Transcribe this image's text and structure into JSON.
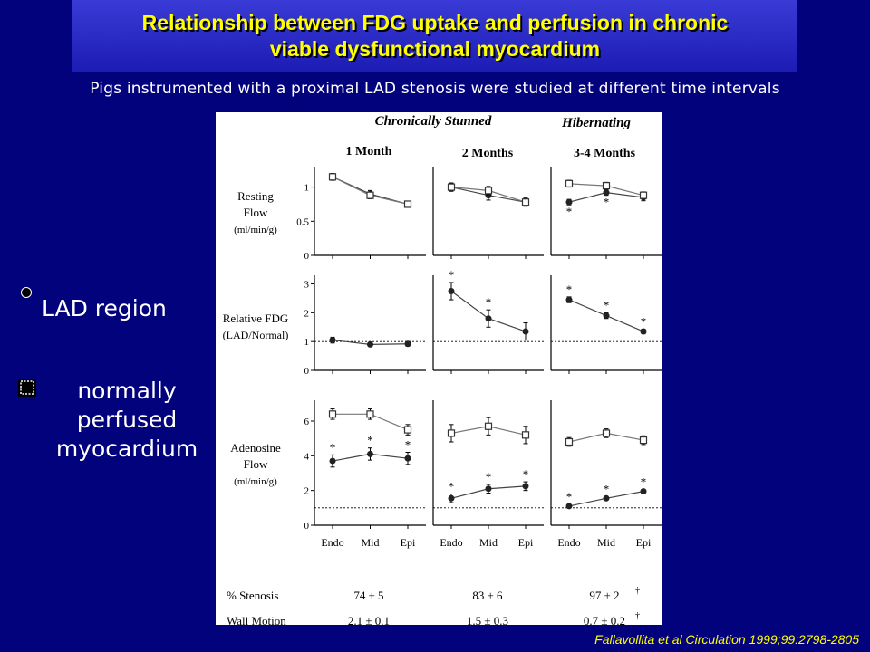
{
  "title": {
    "line1": "Relationship between FDG uptake and perfusion in chronic",
    "line2": "viable dysfunctional myocardium"
  },
  "subtitle": "Pigs instrumented with a proximal LAD stenosis were studied at different time intervals",
  "legend": {
    "lad": "LAD region",
    "normal_lines": [
      "normally",
      "perfused",
      "myocardium"
    ]
  },
  "citation": "Fallavollita et al Circulation 1999;99:2798-2805",
  "figure": {
    "group_headers": [
      "Chronically Stunned",
      "Hibernating"
    ],
    "time_points": [
      "1 Month",
      "2 Months",
      "3-4 Months"
    ],
    "row_labels": [
      [
        "Resting",
        "Flow",
        "(ml/min/g)"
      ],
      [
        "Relative FDG",
        "(LAD/Normal)"
      ],
      [
        "Adenosine",
        "Flow",
        "(ml/min/g)"
      ]
    ],
    "x_tick_labels": [
      "Endo",
      "Mid",
      "Epi"
    ],
    "table": [
      {
        "label": "% Stenosis",
        "values": [
          "74 ± 5",
          "83 ± 6",
          "97 ± 2"
        ],
        "dagger": [
          false,
          false,
          true
        ]
      },
      {
        "label": "Wall Motion",
        "values": [
          "2.1 ± 0.1",
          "1.5 ± 0.3",
          "0.7 ± 0.2"
        ],
        "dagger": [
          false,
          false,
          true
        ]
      }
    ]
  },
  "chart_data": [
    {
      "type": "line",
      "panel": "Resting Flow – 1 Month",
      "categories": [
        "Endo",
        "Mid",
        "Epi"
      ],
      "ylim": [
        0,
        1.3
      ],
      "y_ticks": [
        "0",
        "0.5",
        "1"
      ],
      "reference_line": 1,
      "series": [
        {
          "name": "LAD region",
          "values": [
            1.15,
            0.9,
            0.75
          ],
          "err": [
            0.05,
            0.05,
            0.04
          ],
          "sig": [
            false,
            false,
            false
          ]
        },
        {
          "name": "normally perfused myocardium",
          "values": [
            1.15,
            0.88,
            0.75
          ],
          "err": [
            0.05,
            0.05,
            0.04
          ],
          "sig": [
            false,
            false,
            false
          ]
        }
      ]
    },
    {
      "type": "line",
      "panel": "Resting Flow – 2 Months",
      "categories": [
        "Endo",
        "Mid",
        "Epi"
      ],
      "ylim": [
        0,
        1.3
      ],
      "y_ticks": [],
      "reference_line": 1,
      "series": [
        {
          "name": "LAD region",
          "values": [
            1.0,
            0.88,
            0.78
          ],
          "err": [
            0.06,
            0.07,
            0.06
          ],
          "sig": [
            false,
            false,
            false
          ]
        },
        {
          "name": "normally perfused myocardium",
          "values": [
            1.0,
            0.95,
            0.78
          ],
          "err": [
            0.06,
            0.06,
            0.05
          ],
          "sig": [
            false,
            false,
            false
          ]
        }
      ]
    },
    {
      "type": "line",
      "panel": "Resting Flow – 3-4 Months",
      "categories": [
        "Endo",
        "Mid",
        "Epi"
      ],
      "ylim": [
        0,
        1.3
      ],
      "y_ticks": [],
      "reference_line": 1,
      "series": [
        {
          "name": "LAD region",
          "values": [
            0.78,
            0.92,
            0.85
          ],
          "err": [
            0.04,
            0.04,
            0.05
          ],
          "sig": [
            true,
            true,
            false
          ]
        },
        {
          "name": "normally perfused myocardium",
          "values": [
            1.05,
            1.02,
            0.88
          ],
          "err": [
            0.05,
            0.05,
            0.05
          ],
          "sig": [
            false,
            false,
            false
          ]
        }
      ]
    },
    {
      "type": "line",
      "panel": "Relative FDG – 1 Month",
      "categories": [
        "Endo",
        "Mid",
        "Epi"
      ],
      "ylim": [
        0,
        3.3
      ],
      "y_ticks": [
        "0",
        "1",
        "2",
        "3"
      ],
      "reference_line": 1,
      "series": [
        {
          "name": "LAD region",
          "values": [
            1.05,
            0.9,
            0.92
          ],
          "err": [
            0.1,
            0.07,
            0.08
          ],
          "sig": [
            false,
            false,
            false
          ]
        }
      ]
    },
    {
      "type": "line",
      "panel": "Relative FDG – 2 Months",
      "categories": [
        "Endo",
        "Mid",
        "Epi"
      ],
      "ylim": [
        0,
        3.3
      ],
      "y_ticks": [],
      "reference_line": 1,
      "series": [
        {
          "name": "LAD region",
          "values": [
            2.75,
            1.8,
            1.35
          ],
          "err": [
            0.3,
            0.3,
            0.3
          ],
          "sig": [
            true,
            true,
            false
          ]
        }
      ]
    },
    {
      "type": "line",
      "panel": "Relative FDG – 3-4 Months",
      "categories": [
        "Endo",
        "Mid",
        "Epi"
      ],
      "ylim": [
        0,
        3.3
      ],
      "y_ticks": [],
      "reference_line": 1,
      "series": [
        {
          "name": "LAD region",
          "values": [
            2.45,
            1.9,
            1.35
          ],
          "err": [
            0.1,
            0.1,
            0.08
          ],
          "sig": [
            true,
            true,
            true
          ]
        }
      ]
    },
    {
      "type": "line",
      "panel": "Adenosine Flow – 1 Month",
      "categories": [
        "Endo",
        "Mid",
        "Epi"
      ],
      "ylim": [
        0,
        7.2
      ],
      "y_ticks": [
        "0",
        "2",
        "4",
        "6"
      ],
      "reference_line": 1,
      "series": [
        {
          "name": "LAD region",
          "values": [
            3.7,
            4.1,
            3.85
          ],
          "err": [
            0.35,
            0.35,
            0.35
          ],
          "sig": [
            true,
            true,
            true
          ]
        },
        {
          "name": "normally perfused myocardium",
          "values": [
            6.4,
            6.4,
            5.5
          ],
          "err": [
            0.3,
            0.3,
            0.3
          ],
          "sig": [
            false,
            false,
            false
          ]
        }
      ]
    },
    {
      "type": "line",
      "panel": "Adenosine Flow – 2 Months",
      "categories": [
        "Endo",
        "Mid",
        "Epi"
      ],
      "ylim": [
        0,
        7.2
      ],
      "y_ticks": [],
      "reference_line": 1,
      "series": [
        {
          "name": "LAD region",
          "values": [
            1.55,
            2.1,
            2.25
          ],
          "err": [
            0.25,
            0.25,
            0.25
          ],
          "sig": [
            true,
            true,
            true
          ]
        },
        {
          "name": "normally perfused myocardium",
          "values": [
            5.3,
            5.7,
            5.2
          ],
          "err": [
            0.5,
            0.5,
            0.5
          ],
          "sig": [
            false,
            false,
            false
          ]
        }
      ]
    },
    {
      "type": "line",
      "panel": "Adenosine Flow – 3-4 Months",
      "categories": [
        "Endo",
        "Mid",
        "Epi"
      ],
      "ylim": [
        0,
        7.2
      ],
      "y_ticks": [],
      "reference_line": 1,
      "series": [
        {
          "name": "LAD region",
          "values": [
            1.1,
            1.55,
            1.95
          ],
          "err": [
            0.1,
            0.1,
            0.1
          ],
          "sig": [
            true,
            true,
            true
          ]
        },
        {
          "name": "normally perfused myocardium",
          "values": [
            4.8,
            5.3,
            4.9
          ],
          "err": [
            0.25,
            0.25,
            0.25
          ],
          "sig": [
            false,
            false,
            false
          ]
        }
      ]
    }
  ]
}
